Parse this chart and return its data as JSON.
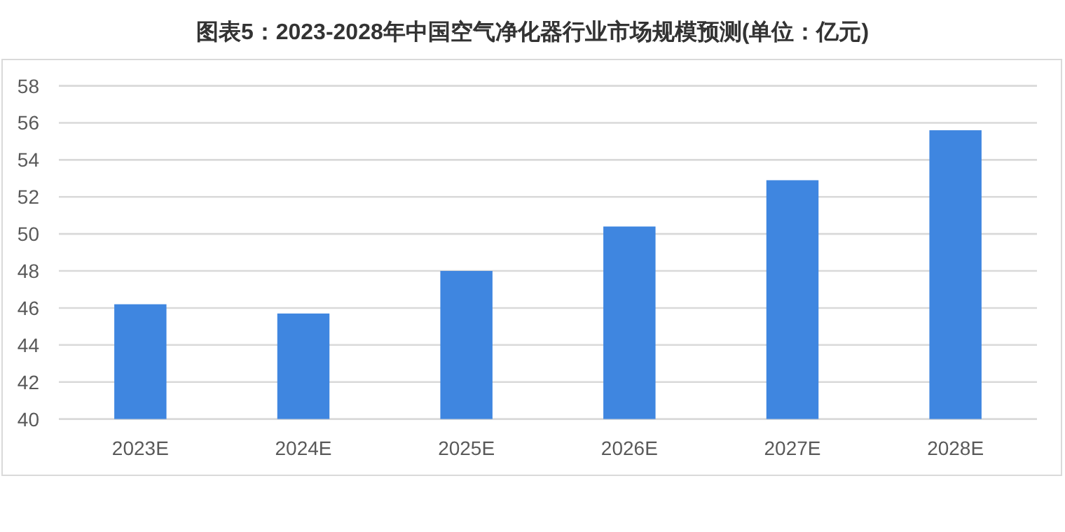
{
  "chart_data": {
    "type": "bar",
    "title": "图表5：2023-2028年中国空气净化器行业市场规模预测(单位：亿元)",
    "categories": [
      "2023E",
      "2024E",
      "2025E",
      "2026E",
      "2027E",
      "2028E"
    ],
    "values": [
      46.2,
      45.7,
      48.0,
      50.4,
      52.9,
      55.6
    ],
    "color": "#3f86e0",
    "ylim": [
      40,
      58
    ],
    "yticks": [
      40,
      42,
      44,
      46,
      48,
      50,
      52,
      54,
      56,
      58
    ],
    "grid": "y"
  }
}
